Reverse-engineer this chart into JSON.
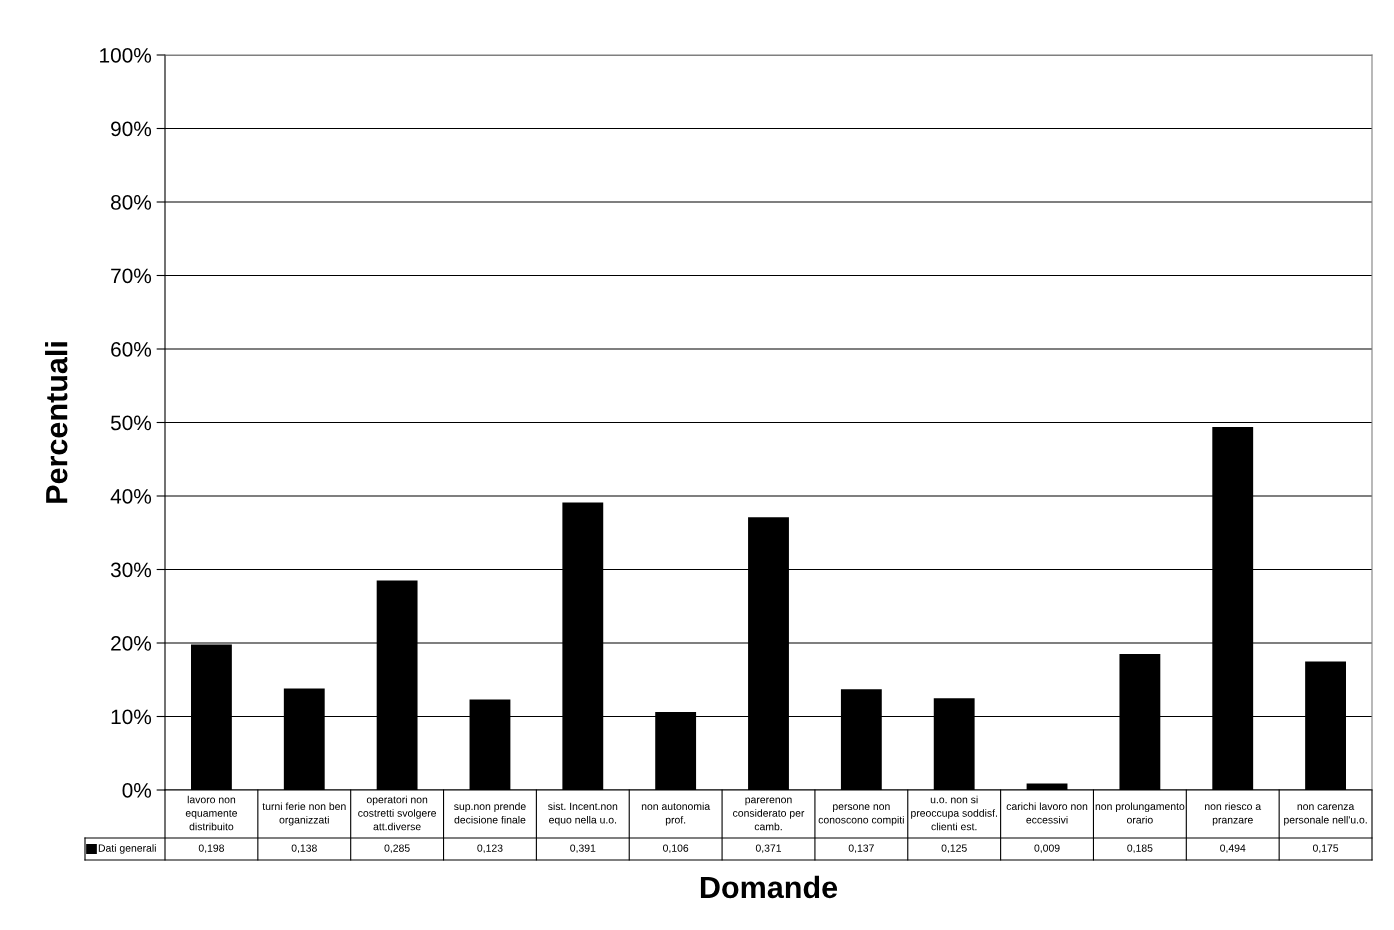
{
  "chart_data": {
    "type": "bar",
    "xlabel": "Domande",
    "ylabel": "Percentuali",
    "categories": [
      "lavoro non\nequamente\ndistribuito",
      "turni ferie non ben\norganizzati",
      "operatori non\ncostretti svolgere\natt.diverse",
      "sup.non prende\ndecisione finale",
      "sist. Incent.non\nequo nella u.o.",
      "non autonomia\nprof.",
      "parerenon\nconsiderato per\ncamb.",
      "persone non\nconoscono compiti",
      "u.o. non si\npreoccupa soddisf.\nclienti est.",
      "carichi lavoro non\neccessivi",
      "non prolungamento\norario",
      "non riesco a\npranzare",
      "non carenza\npersonale nell'u.o."
    ],
    "series": [
      {
        "name": "Dati generali",
        "color": "#000000",
        "values": [
          0.198,
          0.138,
          0.285,
          0.123,
          0.391,
          0.106,
          0.371,
          0.137,
          0.125,
          0.009,
          0.185,
          0.494,
          0.175
        ],
        "value_labels": [
          "0,198",
          "0,138",
          "0,285",
          "0,123",
          "0,391",
          "0,106",
          "0,371",
          "0,137",
          "0,125",
          "0,009",
          "0,185",
          "0,494",
          "0,175"
        ]
      }
    ],
    "ylim": [
      0,
      1
    ],
    "yticks": [
      {
        "value": 0,
        "label": "0%"
      },
      {
        "value": 0.1,
        "label": "10%"
      },
      {
        "value": 0.2,
        "label": "20%"
      },
      {
        "value": 0.3,
        "label": "30%"
      },
      {
        "value": 0.4,
        "label": "40%"
      },
      {
        "value": 0.5,
        "label": "50%"
      },
      {
        "value": 0.6,
        "label": "60%"
      },
      {
        "value": 0.7,
        "label": "70%"
      },
      {
        "value": 0.8,
        "label": "80%"
      },
      {
        "value": 0.9,
        "label": "90%"
      },
      {
        "value": 1,
        "label": "100%"
      }
    ],
    "grid": "y",
    "legend": "bottom left"
  }
}
